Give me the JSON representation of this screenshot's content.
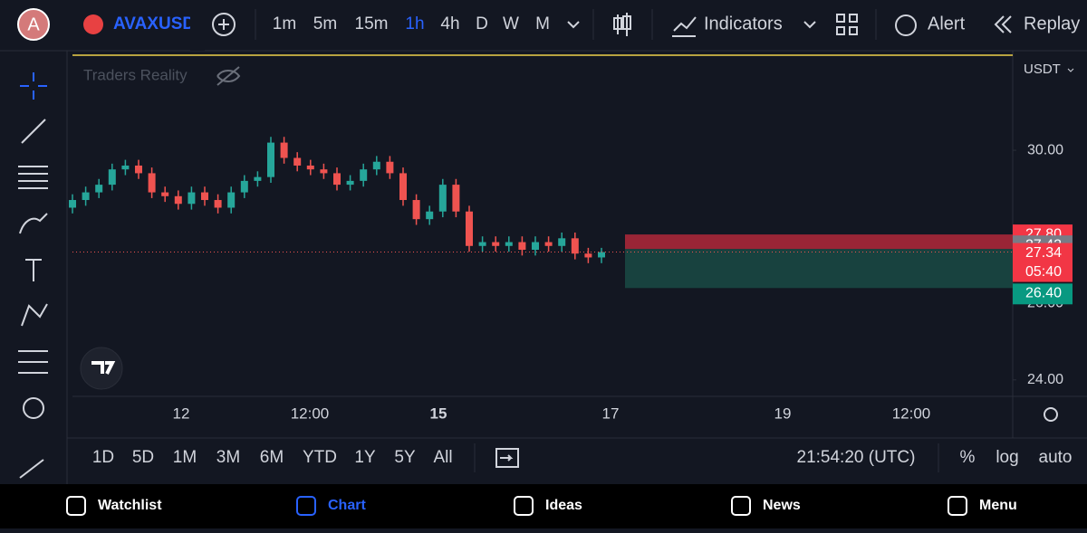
{
  "toolbar": {
    "avatar": "A",
    "symbol": "AVAXUSD",
    "intervals": [
      "1m",
      "5m",
      "15m",
      "1h",
      "4h",
      "D",
      "W",
      "M"
    ],
    "active_interval": "1h",
    "indicators": "Indicators",
    "alert": "Alert",
    "replay": "Replay"
  },
  "chart_data": {
    "type": "candlestick",
    "indicator_label": "Traders Reality",
    "currency": "USDT",
    "open": [
      28.5,
      28.7,
      28.9,
      29.1,
      29.5,
      29.6,
      29.4,
      28.9,
      28.8,
      28.6,
      28.9,
      28.7,
      28.5,
      28.9,
      29.2,
      29.3,
      30.2,
      29.8,
      29.6,
      29.5,
      29.4,
      29.1,
      29.2,
      29.5,
      29.7,
      29.4,
      28.7,
      28.2,
      28.4,
      29.1,
      28.4,
      27.5,
      27.6,
      27.5,
      27.6,
      27.4,
      27.6,
      27.5,
      27.7,
      27.3,
      27.2
    ],
    "high": [
      28.85,
      29.05,
      29.25,
      29.65,
      29.75,
      29.75,
      29.55,
      29.05,
      28.95,
      29.05,
      29.05,
      28.85,
      29.05,
      29.35,
      29.45,
      30.35,
      30.35,
      29.95,
      29.75,
      29.65,
      29.55,
      29.35,
      29.65,
      29.85,
      29.85,
      29.55,
      28.85,
      28.55,
      29.25,
      29.25,
      28.55,
      27.75,
      27.75,
      27.75,
      27.75,
      27.75,
      27.75,
      27.85,
      27.85,
      27.45,
      27.45
    ],
    "low": [
      28.35,
      28.55,
      28.75,
      28.95,
      29.35,
      29.25,
      28.75,
      28.65,
      28.45,
      28.45,
      28.55,
      28.35,
      28.35,
      28.75,
      29.05,
      29.15,
      29.65,
      29.45,
      29.35,
      29.25,
      28.95,
      28.95,
      29.05,
      29.35,
      29.25,
      28.55,
      28.05,
      28.05,
      28.25,
      28.25,
      27.35,
      27.35,
      27.35,
      27.35,
      27.25,
      27.25,
      27.35,
      27.35,
      27.15,
      27.05,
      27.05
    ],
    "close": [
      28.7,
      28.9,
      29.1,
      29.5,
      29.6,
      29.4,
      28.9,
      28.8,
      28.6,
      28.9,
      28.7,
      28.5,
      28.9,
      29.2,
      29.3,
      30.2,
      29.8,
      29.6,
      29.5,
      29.4,
      29.1,
      29.2,
      29.5,
      29.7,
      29.4,
      28.7,
      28.2,
      28.4,
      29.1,
      28.4,
      27.5,
      27.6,
      27.5,
      27.6,
      27.4,
      27.6,
      27.5,
      27.7,
      27.3,
      27.2,
      27.34
    ],
    "up_color": "#26a69a",
    "down_color": "#ef5350",
    "ylim": [
      23.57,
      32.46
    ],
    "yticks": [
      {
        "value": 30,
        "label": "30.00"
      },
      {
        "value": 26,
        "label": "26.00"
      },
      {
        "value": 24,
        "label": "24.00"
      }
    ],
    "x_labels": [
      "12",
      "12:00",
      "15",
      "17",
      "19",
      "12:00"
    ],
    "last_price": 27.34,
    "countdown": "05:40",
    "position": {
      "values": [
        27.8,
        27.42,
        26.4
      ],
      "value_labels": [
        "27.80",
        "27.42",
        "26.40"
      ]
    }
  },
  "bottom_bar": {
    "ranges": [
      "1D",
      "5D",
      "1M",
      "3M",
      "6M",
      "YTD",
      "1Y",
      "5Y",
      "All"
    ],
    "clock": "21:54:20 (UTC)",
    "scale": [
      "%",
      "log",
      "auto"
    ]
  },
  "nav": {
    "items": [
      "Watchlist",
      "Chart",
      "Ideas",
      "News",
      "Menu"
    ],
    "active": "Chart"
  }
}
